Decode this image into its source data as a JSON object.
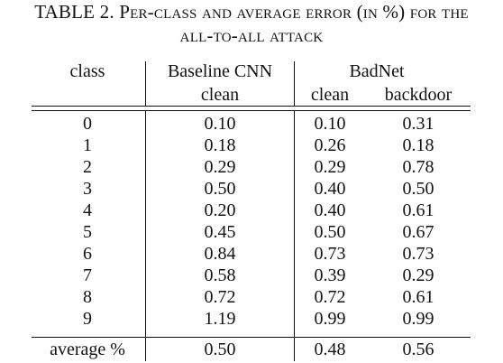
{
  "caption": {
    "line1": "TABLE 2. Per-class and average error (in %) for the",
    "line2": "all-to-all attack"
  },
  "header": {
    "class_label": "class",
    "baseline_label": "Baseline CNN",
    "baseline_sub": "clean",
    "badnet_label": "BadNet",
    "badnet_clean": "clean",
    "badnet_backdoor": "backdoor"
  },
  "rows": [
    {
      "class": "0",
      "baseline": "0.10",
      "clean": "0.10",
      "backdoor": "0.31"
    },
    {
      "class": "1",
      "baseline": "0.18",
      "clean": "0.26",
      "backdoor": "0.18"
    },
    {
      "class": "2",
      "baseline": "0.29",
      "clean": "0.29",
      "backdoor": "0.78"
    },
    {
      "class": "3",
      "baseline": "0.50",
      "clean": "0.40",
      "backdoor": "0.50"
    },
    {
      "class": "4",
      "baseline": "0.20",
      "clean": "0.40",
      "backdoor": "0.61"
    },
    {
      "class": "5",
      "baseline": "0.45",
      "clean": "0.50",
      "backdoor": "0.67"
    },
    {
      "class": "6",
      "baseline": "0.84",
      "clean": "0.73",
      "backdoor": "0.73"
    },
    {
      "class": "7",
      "baseline": "0.58",
      "clean": "0.39",
      "backdoor": "0.29"
    },
    {
      "class": "8",
      "baseline": "0.72",
      "clean": "0.72",
      "backdoor": "0.61"
    },
    {
      "class": "9",
      "baseline": "1.19",
      "clean": "0.99",
      "backdoor": "0.99"
    }
  ],
  "average": {
    "label": "average %",
    "baseline": "0.50",
    "clean": "0.48",
    "backdoor": "0.56"
  }
}
